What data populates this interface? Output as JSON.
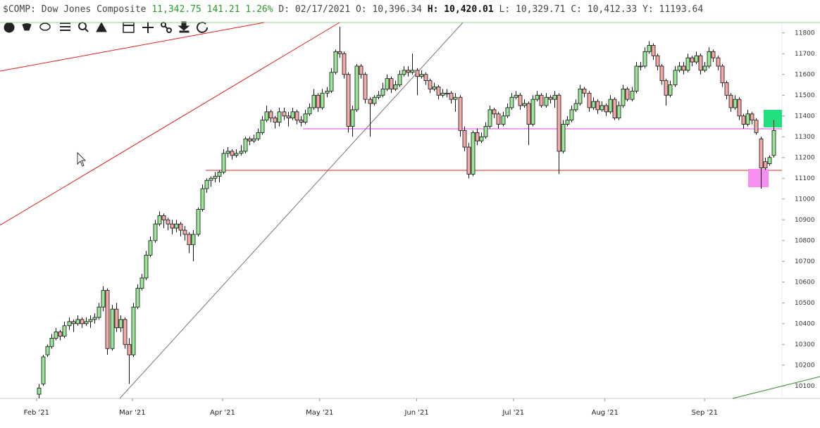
{
  "header": {
    "symbol": "$COMP:",
    "name": "Dow Jones Composite",
    "last": "11,342.75",
    "change": "141.21",
    "change_pct": "1.26%",
    "fields": [
      {
        "label": "D:",
        "value": "02/17/2021"
      },
      {
        "label": "O:",
        "value": "10,396.34"
      },
      {
        "label": "H:",
        "value": "10,420.01"
      },
      {
        "label": "L:",
        "value": "10,329.71"
      },
      {
        "label": "C:",
        "value": "10,412.33"
      },
      {
        "label": "Y:",
        "value": "11193.64"
      }
    ]
  },
  "chart_data": {
    "type": "candlestick",
    "up_color": "#98e898",
    "down_color": "#f4a8a8",
    "ylim": [
      10040,
      11850
    ],
    "yticks": [
      10100,
      10200,
      10300,
      10400,
      10500,
      10600,
      10700,
      10800,
      10900,
      11000,
      11100,
      11200,
      11300,
      11400,
      11500,
      11600,
      11700,
      11800
    ],
    "xlim": [
      -9,
      173
    ],
    "xticks": [
      {
        "value": -0.5,
        "label": "Feb '21"
      },
      {
        "value": 21.8,
        "label": "Mar '21"
      },
      {
        "value": 42.8,
        "label": "Apr '21"
      },
      {
        "value": 65.4,
        "label": "May '21"
      },
      {
        "value": 88,
        "label": "Jun '21"
      },
      {
        "value": 110.5,
        "label": "Jul '21"
      },
      {
        "value": 131.8,
        "label": "Aug '21"
      },
      {
        "value": 155,
        "label": "Sep '21"
      }
    ],
    "candles": [
      [
        10060,
        10110,
        10040,
        10090
      ],
      [
        10110,
        10250,
        10100,
        10240
      ],
      [
        10250,
        10300,
        10240,
        10290
      ],
      [
        10290,
        10350,
        10280,
        10330
      ],
      [
        10330,
        10380,
        10320,
        10360
      ],
      [
        10360,
        10370,
        10320,
        10340
      ],
      [
        10340,
        10410,
        10330,
        10390
      ],
      [
        10390,
        10430,
        10370,
        10410
      ],
      [
        10410,
        10420,
        10360,
        10400
      ],
      [
        10400,
        10440,
        10390,
        10420
      ],
      [
        10420,
        10430,
        10380,
        10400
      ],
      [
        10400,
        10430,
        10390,
        10410
      ],
      [
        10410,
        10440,
        10380,
        10420
      ],
      [
        10420,
        10450,
        10400,
        10430
      ],
      [
        10430,
        10500,
        10420,
        10480
      ],
      [
        10480,
        10580,
        10460,
        10560
      ],
      [
        10560,
        10570,
        10250,
        10280
      ],
      [
        10280,
        10490,
        10270,
        10470
      ],
      [
        10470,
        10500,
        10360,
        10380
      ],
      [
        10380,
        10440,
        10360,
        10420
      ],
      [
        10420,
        10430,
        10280,
        10300
      ],
      [
        10300,
        10330,
        10110,
        10250
      ],
      [
        10250,
        10500,
        10240,
        10480
      ],
      [
        10480,
        10590,
        10470,
        10570
      ],
      [
        10570,
        10640,
        10560,
        10620
      ],
      [
        10620,
        10750,
        10610,
        10730
      ],
      [
        10730,
        10820,
        10720,
        10800
      ],
      [
        10800,
        10900,
        10790,
        10880
      ],
      [
        10880,
        10940,
        10870,
        10920
      ],
      [
        10920,
        10930,
        10860,
        10900
      ],
      [
        10900,
        10910,
        10850,
        10880
      ],
      [
        10880,
        10900,
        10830,
        10860
      ],
      [
        10860,
        10900,
        10840,
        10880
      ],
      [
        10880,
        10890,
        10820,
        10850
      ],
      [
        10850,
        10870,
        10800,
        10830
      ],
      [
        10830,
        10840,
        10740,
        10780
      ],
      [
        10780,
        10850,
        10700,
        10830
      ],
      [
        10830,
        10960,
        10820,
        10950
      ],
      [
        10950,
        11070,
        10940,
        11050
      ],
      [
        11050,
        11100,
        11030,
        11090
      ],
      [
        11090,
        11110,
        11060,
        11100
      ],
      [
        11100,
        11130,
        11080,
        11110
      ],
      [
        11110,
        11140,
        11080,
        11130
      ],
      [
        11130,
        11240,
        11120,
        11220
      ],
      [
        11220,
        11250,
        11200,
        11230
      ],
      [
        11230,
        11240,
        11190,
        11210
      ],
      [
        11210,
        11240,
        11200,
        11220
      ],
      [
        11220,
        11260,
        11210,
        11230
      ],
      [
        11230,
        11300,
        11220,
        11290
      ],
      [
        11290,
        11300,
        11260,
        11280
      ],
      [
        11280,
        11310,
        11270,
        11290
      ],
      [
        11290,
        11340,
        11280,
        11320
      ],
      [
        11320,
        11400,
        11310,
        11380
      ],
      [
        11380,
        11450,
        11370,
        11420
      ],
      [
        11420,
        11430,
        11370,
        11390
      ],
      [
        11390,
        11400,
        11340,
        11370
      ],
      [
        11370,
        11440,
        11350,
        11420
      ],
      [
        11420,
        11440,
        11380,
        11400
      ],
      [
        11400,
        11420,
        11350,
        11390
      ],
      [
        11390,
        11440,
        11380,
        11420
      ],
      [
        11420,
        11430,
        11360,
        11380
      ],
      [
        11380,
        11400,
        11350,
        11370
      ],
      [
        11370,
        11430,
        11360,
        11410
      ],
      [
        11410,
        11460,
        11400,
        11440
      ],
      [
        11440,
        11530,
        11430,
        11500
      ],
      [
        11500,
        11510,
        11420,
        11440
      ],
      [
        11440,
        11530,
        11430,
        11510
      ],
      [
        11510,
        11540,
        11490,
        11520
      ],
      [
        11520,
        11630,
        11510,
        11610
      ],
      [
        11610,
        11720,
        11600,
        11710
      ],
      [
        11710,
        11830,
        11680,
        11700
      ],
      [
        11700,
        11710,
        11580,
        11600
      ],
      [
        11600,
        11610,
        11320,
        11350
      ],
      [
        11350,
        11450,
        11300,
        11430
      ],
      [
        11430,
        11650,
        11420,
        11640
      ],
      [
        11640,
        11650,
        11580,
        11600
      ],
      [
        11600,
        11610,
        11460,
        11480
      ],
      [
        11480,
        11490,
        11300,
        11460
      ],
      [
        11460,
        11500,
        11450,
        11490
      ],
      [
        11490,
        11520,
        11480,
        11500
      ],
      [
        11500,
        11560,
        11490,
        11530
      ],
      [
        11530,
        11600,
        11520,
        11580
      ],
      [
        11580,
        11590,
        11510,
        11530
      ],
      [
        11530,
        11570,
        11520,
        11550
      ],
      [
        11550,
        11620,
        11540,
        11600
      ],
      [
        11600,
        11640,
        11590,
        11620
      ],
      [
        11620,
        11640,
        11590,
        11610
      ],
      [
        11610,
        11700,
        11600,
        11620
      ],
      [
        11620,
        11630,
        11500,
        11590
      ],
      [
        11590,
        11620,
        11580,
        11600
      ],
      [
        11600,
        11610,
        11550,
        11570
      ],
      [
        11570,
        11580,
        11510,
        11530
      ],
      [
        11530,
        11560,
        11520,
        11540
      ],
      [
        11540,
        11550,
        11480,
        11500
      ],
      [
        11500,
        11530,
        11490,
        11510
      ],
      [
        11510,
        11530,
        11490,
        11510
      ],
      [
        11510,
        11520,
        11460,
        11480
      ],
      [
        11480,
        11510,
        11420,
        11490
      ],
      [
        11490,
        11500,
        11300,
        11330
      ],
      [
        11330,
        11350,
        11230,
        11250
      ],
      [
        11250,
        11270,
        11100,
        11120
      ],
      [
        11120,
        11330,
        11110,
        11320
      ],
      [
        11320,
        11340,
        11260,
        11280
      ],
      [
        11280,
        11320,
        11270,
        11300
      ],
      [
        11300,
        11370,
        11290,
        11350
      ],
      [
        11350,
        11450,
        11340,
        11430
      ],
      [
        11430,
        11440,
        11390,
        11410
      ],
      [
        11410,
        11420,
        11340,
        11360
      ],
      [
        11360,
        11420,
        11350,
        11400
      ],
      [
        11400,
        11460,
        11390,
        11440
      ],
      [
        11440,
        11510,
        11430,
        11490
      ],
      [
        11490,
        11520,
        11480,
        11500
      ],
      [
        11500,
        11510,
        11430,
        11450
      ],
      [
        11450,
        11480,
        11440,
        11460
      ],
      [
        11460,
        11470,
        11260,
        11360
      ],
      [
        11360,
        11500,
        11350,
        11480
      ],
      [
        11480,
        11520,
        11470,
        11500
      ],
      [
        11500,
        11510,
        11440,
        11450
      ],
      [
        11450,
        11510,
        11440,
        11490
      ],
      [
        11490,
        11500,
        11460,
        11480
      ],
      [
        11480,
        11520,
        11440,
        11500
      ],
      [
        11500,
        11510,
        11120,
        11230
      ],
      [
        11230,
        11380,
        11220,
        11360
      ],
      [
        11360,
        11400,
        11350,
        11380
      ],
      [
        11380,
        11450,
        11370,
        11430
      ],
      [
        11430,
        11480,
        11420,
        11460
      ],
      [
        11460,
        11550,
        11450,
        11530
      ],
      [
        11530,
        11540,
        11490,
        11510
      ],
      [
        11510,
        11520,
        11420,
        11440
      ],
      [
        11440,
        11490,
        11430,
        11470
      ],
      [
        11470,
        11480,
        11410,
        11430
      ],
      [
        11430,
        11470,
        11420,
        11450
      ],
      [
        11450,
        11460,
        11400,
        11420
      ],
      [
        11420,
        11500,
        11410,
        11480
      ],
      [
        11480,
        11490,
        11380,
        11390
      ],
      [
        11390,
        11470,
        11380,
        11450
      ],
      [
        11450,
        11550,
        11440,
        11530
      ],
      [
        11530,
        11540,
        11470,
        11480
      ],
      [
        11480,
        11540,
        11470,
        11520
      ],
      [
        11520,
        11660,
        11510,
        11640
      ],
      [
        11640,
        11660,
        11620,
        11640
      ],
      [
        11640,
        11730,
        11630,
        11710
      ],
      [
        11710,
        11760,
        11700,
        11740
      ],
      [
        11740,
        11750,
        11670,
        11690
      ],
      [
        11690,
        11700,
        11620,
        11640
      ],
      [
        11640,
        11650,
        11550,
        11570
      ],
      [
        11570,
        11580,
        11450,
        11500
      ],
      [
        11500,
        11570,
        11490,
        11550
      ],
      [
        11550,
        11640,
        11540,
        11620
      ],
      [
        11620,
        11660,
        11610,
        11640
      ],
      [
        11640,
        11660,
        11600,
        11620
      ],
      [
        11620,
        11700,
        11610,
        11680
      ],
      [
        11680,
        11690,
        11640,
        11660
      ],
      [
        11660,
        11710,
        11650,
        11690
      ],
      [
        11690,
        11700,
        11600,
        11620
      ],
      [
        11620,
        11660,
        11610,
        11640
      ],
      [
        11640,
        11730,
        11630,
        11710
      ],
      [
        11710,
        11720,
        11660,
        11680
      ],
      [
        11680,
        11690,
        11620,
        11640
      ],
      [
        11640,
        11650,
        11540,
        11560
      ],
      [
        11560,
        11570,
        11480,
        11500
      ],
      [
        11500,
        11510,
        11420,
        11440
      ],
      [
        11440,
        11500,
        11430,
        11480
      ],
      [
        11480,
        11490,
        11380,
        11400
      ],
      [
        11400,
        11410,
        11340,
        11360
      ],
      [
        11360,
        11430,
        11350,
        11410
      ],
      [
        11410,
        11420,
        11360,
        11380
      ],
      [
        11380,
        11390,
        11310,
        11320
      ],
      [
        11290,
        11300,
        11050,
        11150
      ],
      [
        11180,
        11200,
        11140,
        11150
      ],
      [
        11170,
        11210,
        11160,
        11200
      ],
      [
        11210,
        11380,
        11200,
        11330
      ]
    ]
  }
}
